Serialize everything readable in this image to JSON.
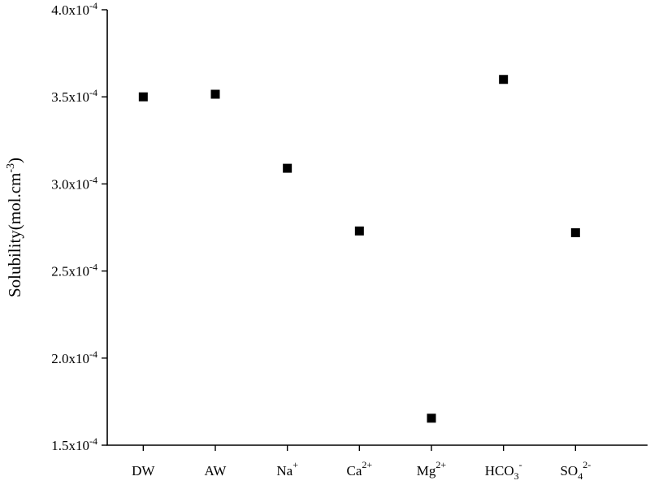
{
  "chart_data": {
    "type": "scatter",
    "title": "",
    "xlabel": "",
    "ylabel": {
      "base": "Solubility(mol.cm",
      "sup": "-3",
      "tail": ")"
    },
    "categories": [
      {
        "text": "DW",
        "sub": "",
        "sup": ""
      },
      {
        "text": "AW",
        "sub": "",
        "sup": ""
      },
      {
        "text": "Na",
        "sub": "",
        "sup": "+"
      },
      {
        "text": "Ca",
        "sub": "",
        "sup": "2+"
      },
      {
        "text": "Mg",
        "sub": "",
        "sup": "2+"
      },
      {
        "text": "HCO",
        "sub": "3",
        "sup": "-"
      },
      {
        "text": "SO",
        "sub": "4",
        "sup": "2-"
      }
    ],
    "values": [
      0.00035,
      0.0003515,
      0.000309,
      0.000273,
      0.0001655,
      0.00036,
      0.000272
    ],
    "ylim": [
      0.00015,
      0.0004
    ],
    "yticks": [
      {
        "value": 0.00015,
        "base": "1.5x10",
        "exp": "-4"
      },
      {
        "value": 0.0002,
        "base": "2.0x10",
        "exp": "-4"
      },
      {
        "value": 0.00025,
        "base": "2.5x10",
        "exp": "-4"
      },
      {
        "value": 0.0003,
        "base": "3.0x10",
        "exp": "-4"
      },
      {
        "value": 0.00035,
        "base": "3.5x10",
        "exp": "-4"
      },
      {
        "value": 0.0004,
        "base": "4.0x10",
        "exp": "-4"
      }
    ],
    "grid": false,
    "marker": "square",
    "marker_color": "#000000"
  }
}
